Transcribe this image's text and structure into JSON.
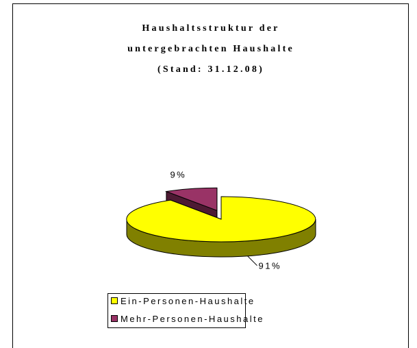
{
  "chart_data": {
    "type": "pie3d",
    "title": [
      "Haushaltsstruktur der",
      "untergebrachten Haushalte",
      "(Stand: 31.12.08)"
    ],
    "categories": [
      "Ein-Personen-Haushalte",
      "Mehr-Personen-Haushalte"
    ],
    "values": [
      91,
      9
    ],
    "value_labels": [
      "91%",
      "9%"
    ],
    "colors": [
      "#ffff00",
      "#993366"
    ],
    "legend": "bottom"
  }
}
